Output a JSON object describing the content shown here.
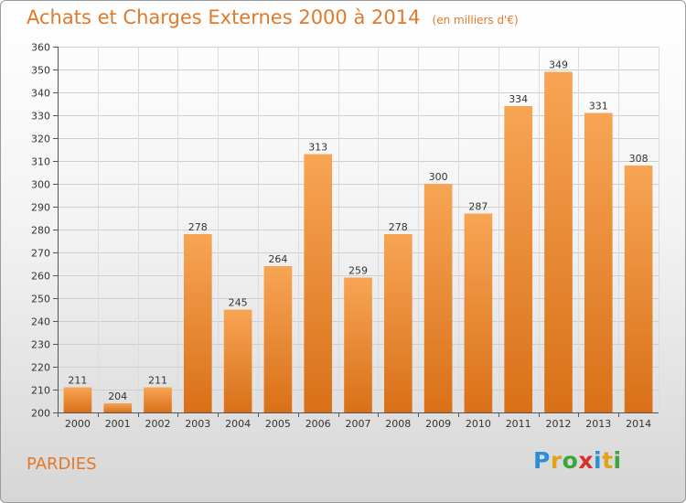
{
  "chart_data": {
    "type": "bar",
    "title": "Achats et Charges Externes 2000 à 2014",
    "unit_label": "(en milliers d'€)",
    "categories": [
      "2000",
      "2001",
      "2002",
      "2003",
      "2004",
      "2005",
      "2006",
      "2007",
      "2008",
      "2009",
      "2010",
      "2011",
      "2012",
      "2013",
      "2014"
    ],
    "values": [
      211,
      204,
      211,
      278,
      245,
      264,
      313,
      259,
      278,
      300,
      287,
      334,
      349,
      331,
      308
    ],
    "ylim": [
      200,
      360
    ],
    "ytick_step": 10,
    "xlabel": "",
    "ylabel": "",
    "grid": true,
    "colors": {
      "bar_light": "#f7a554",
      "bar_dark": "#d97018",
      "title": "#e07a2a"
    }
  },
  "commune": "PARDIES",
  "logo": {
    "letters": [
      "P",
      "r",
      "o",
      "x",
      "i",
      "t",
      "i"
    ],
    "colors": [
      "#2a8fd6",
      "#e0a21b",
      "#3aa63a",
      "#d9302a",
      "#2a8fd6",
      "#e0a21b",
      "#3aa63a"
    ]
  }
}
